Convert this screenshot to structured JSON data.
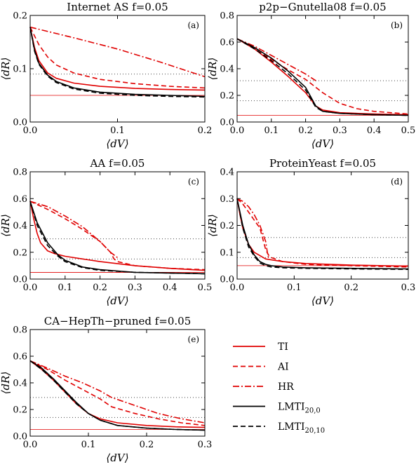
{
  "legend": [
    {
      "key": "TI",
      "label": "TI",
      "sub": "",
      "color": "#e00000",
      "dash": "solid"
    },
    {
      "key": "AI",
      "label": "AI",
      "sub": "",
      "color": "#e00000",
      "dash": "dashed"
    },
    {
      "key": "HR",
      "label": "HR",
      "sub": "",
      "color": "#e00000",
      "dash": "dashdot"
    },
    {
      "key": "LMTI_20_0",
      "label": "LMTI",
      "sub": "20,0",
      "color": "#000000",
      "dash": "solid"
    },
    {
      "key": "LMTI_20_10",
      "label": "LMTI",
      "sub": "20,10",
      "color": "#000000",
      "dash": "dashed"
    }
  ],
  "chart_data": [
    {
      "type": "line",
      "panel": "(a)",
      "title": "Internet AS  f=0.05",
      "xlabel": "⟨dV⟩",
      "ylabel": "⟨dR⟩",
      "xlim": [
        0,
        0.2
      ],
      "ylim": [
        0,
        0.2
      ],
      "xticks": [
        0,
        0.1,
        0.2
      ],
      "xticklabels": [
        "0.0",
        "0.1",
        "0.2"
      ],
      "yticks": [
        0,
        0.1,
        0.2
      ],
      "yticklabels": [
        "0.0",
        "0.1",
        "0.2"
      ],
      "hlines": [
        {
          "y": 0.05,
          "style": "red-thin"
        },
        {
          "y": 0.09,
          "style": "dotted"
        }
      ],
      "series": [
        {
          "name": "TI",
          "x": [
            0,
            0.005,
            0.01,
            0.02,
            0.03,
            0.05,
            0.08,
            0.12,
            0.16,
            0.2
          ],
          "y": [
            0.178,
            0.14,
            0.115,
            0.092,
            0.082,
            0.073,
            0.067,
            0.063,
            0.061,
            0.06
          ]
        },
        {
          "name": "AI",
          "x": [
            0,
            0.01,
            0.02,
            0.03,
            0.05,
            0.08,
            0.12,
            0.16,
            0.2
          ],
          "y": [
            0.178,
            0.145,
            0.122,
            0.107,
            0.092,
            0.08,
            0.072,
            0.067,
            0.064
          ]
        },
        {
          "name": "HR",
          "x": [
            0,
            0.05,
            0.1,
            0.15,
            0.2
          ],
          "y": [
            0.178,
            0.158,
            0.137,
            0.112,
            0.085
          ]
        },
        {
          "name": "LMTI_20_0",
          "x": [
            0,
            0.005,
            0.01,
            0.02,
            0.03,
            0.05,
            0.08,
            0.12,
            0.16,
            0.2
          ],
          "y": [
            0.178,
            0.135,
            0.11,
            0.088,
            0.076,
            0.064,
            0.056,
            0.052,
            0.05,
            0.048
          ]
        },
        {
          "name": "LMTI_20_10",
          "x": [
            0,
            0.005,
            0.01,
            0.02,
            0.03,
            0.05,
            0.08,
            0.12,
            0.16,
            0.2
          ],
          "y": [
            0.178,
            0.133,
            0.108,
            0.086,
            0.074,
            0.062,
            0.054,
            0.05,
            0.048,
            0.047
          ]
        }
      ]
    },
    {
      "type": "line",
      "panel": "(b)",
      "title": "p2p−Gnutella08  f=0.05",
      "xlabel": "⟨dV⟩",
      "ylabel": "⟨dR⟩",
      "xlim": [
        0,
        0.5
      ],
      "ylim": [
        0,
        0.8
      ],
      "xticks": [
        0,
        0.1,
        0.2,
        0.3,
        0.4,
        0.5
      ],
      "xticklabels": [
        "0.0",
        "0.1",
        "0.2",
        "0.3",
        "0.4",
        "0.5"
      ],
      "yticks": [
        0,
        0.2,
        0.4,
        0.6,
        0.8
      ],
      "yticklabels": [
        "0.0",
        "0.2",
        "0.4",
        "0.6",
        "0.8"
      ],
      "hlines": [
        {
          "y": 0.05,
          "style": "red-thin"
        },
        {
          "y": 0.16,
          "style": "dotted"
        },
        {
          "y": 0.31,
          "style": "dotted"
        }
      ],
      "series": [
        {
          "name": "TI",
          "x": [
            0,
            0.05,
            0.1,
            0.15,
            0.2,
            0.23,
            0.25,
            0.3,
            0.4,
            0.5
          ],
          "y": [
            0.625,
            0.55,
            0.45,
            0.34,
            0.22,
            0.12,
            0.09,
            0.07,
            0.06,
            0.055
          ]
        },
        {
          "name": "AI",
          "x": [
            0,
            0.05,
            0.1,
            0.15,
            0.2,
            0.25,
            0.3,
            0.35,
            0.4,
            0.5
          ],
          "y": [
            0.625,
            0.55,
            0.47,
            0.39,
            0.32,
            0.22,
            0.14,
            0.1,
            0.08,
            0.06
          ]
        },
        {
          "name": "HR",
          "x": [
            0,
            0.05,
            0.1,
            0.15,
            0.2,
            0.23
          ],
          "y": [
            0.625,
            0.57,
            0.5,
            0.43,
            0.36,
            0.31
          ]
        },
        {
          "name": "LMTI_20_0",
          "x": [
            0,
            0.05,
            0.1,
            0.15,
            0.2,
            0.23,
            0.25,
            0.3,
            0.4,
            0.5
          ],
          "y": [
            0.625,
            0.56,
            0.48,
            0.38,
            0.26,
            0.12,
            0.08,
            0.065,
            0.055,
            0.05
          ]
        },
        {
          "name": "LMTI_20_10",
          "x": [
            0,
            0.05,
            0.1,
            0.15,
            0.2,
            0.23,
            0.25,
            0.3,
            0.4,
            0.5
          ],
          "y": [
            0.625,
            0.55,
            0.46,
            0.36,
            0.24,
            0.11,
            0.08,
            0.065,
            0.055,
            0.05
          ]
        }
      ]
    },
    {
      "type": "line",
      "panel": "(c)",
      "title": "AA  f=0.05",
      "xlabel": "⟨dV⟩",
      "ylabel": "⟨dR⟩",
      "xlim": [
        0,
        0.5
      ],
      "ylim": [
        0,
        0.8
      ],
      "xticks": [
        0,
        0.1,
        0.2,
        0.3,
        0.4,
        0.5
      ],
      "xticklabels": [
        "0.0",
        "0.1",
        "0.2",
        "0.3",
        "0.4",
        "0.5"
      ],
      "yticks": [
        0,
        0.2,
        0.4,
        0.6,
        0.8
      ],
      "yticklabels": [
        "0.0",
        "0.2",
        "0.4",
        "0.6",
        "0.8"
      ],
      "hlines": [
        {
          "y": 0.05,
          "style": "red-thin"
        },
        {
          "y": 0.15,
          "style": "dotted"
        },
        {
          "y": 0.3,
          "style": "dotted"
        }
      ],
      "series": [
        {
          "name": "TI",
          "x": [
            0,
            0.01,
            0.02,
            0.03,
            0.05,
            0.07,
            0.1,
            0.15,
            0.2,
            0.3,
            0.4,
            0.5
          ],
          "y": [
            0.58,
            0.45,
            0.34,
            0.27,
            0.21,
            0.19,
            0.17,
            0.15,
            0.13,
            0.1,
            0.08,
            0.065
          ]
        },
        {
          "name": "AI",
          "x": [
            0,
            0.05,
            0.1,
            0.15,
            0.2,
            0.23,
            0.24,
            0.25,
            0.3,
            0.4,
            0.5
          ],
          "y": [
            0.58,
            0.52,
            0.45,
            0.37,
            0.28,
            0.2,
            0.15,
            0.13,
            0.1,
            0.08,
            0.07
          ]
        },
        {
          "name": "HR",
          "x": [
            0,
            0.05,
            0.1,
            0.15,
            0.2,
            0.23,
            0.25
          ],
          "y": [
            0.58,
            0.54,
            0.47,
            0.39,
            0.28,
            0.2,
            0.16
          ]
        },
        {
          "name": "LMTI_20_0",
          "x": [
            0,
            0.02,
            0.05,
            0.08,
            0.1,
            0.15,
            0.2,
            0.3,
            0.4,
            0.5
          ],
          "y": [
            0.58,
            0.42,
            0.27,
            0.18,
            0.14,
            0.09,
            0.07,
            0.05,
            0.045,
            0.04
          ]
        },
        {
          "name": "LMTI_20_10",
          "x": [
            0,
            0.02,
            0.05,
            0.08,
            0.1,
            0.15,
            0.2,
            0.3,
            0.4,
            0.5
          ],
          "y": [
            0.58,
            0.4,
            0.25,
            0.17,
            0.13,
            0.085,
            0.065,
            0.05,
            0.045,
            0.04
          ]
        }
      ]
    },
    {
      "type": "line",
      "panel": "(d)",
      "title": "ProteinYeast  f=0.05",
      "xlabel": "⟨dV⟩",
      "ylabel": "⟨dR⟩",
      "xlim": [
        0,
        0.3
      ],
      "ylim": [
        0,
        0.4
      ],
      "xticks": [
        0,
        0.1,
        0.2,
        0.3
      ],
      "xticklabels": [
        "0.0",
        "0.1",
        "0.2",
        "0.3"
      ],
      "yticks": [
        0,
        0.1,
        0.2,
        0.3,
        0.4
      ],
      "yticklabels": [
        "0.0",
        "0.1",
        "0.2",
        "0.3",
        "0.4"
      ],
      "hlines": [
        {
          "y": 0.05,
          "style": "red-thin"
        },
        {
          "y": 0.08,
          "style": "dotted"
        },
        {
          "y": 0.155,
          "style": "dotted"
        }
      ],
      "series": [
        {
          "name": "TI",
          "x": [
            0,
            0.005,
            0.01,
            0.02,
            0.03,
            0.05,
            0.08,
            0.12,
            0.2,
            0.3
          ],
          "y": [
            0.3,
            0.24,
            0.19,
            0.13,
            0.1,
            0.075,
            0.065,
            0.058,
            0.052,
            0.048
          ]
        },
        {
          "name": "AI",
          "x": [
            0,
            0.01,
            0.02,
            0.03,
            0.04,
            0.045,
            0.05,
            0.055,
            0.06,
            0.08,
            0.12,
            0.2,
            0.3
          ],
          "y": [
            0.3,
            0.28,
            0.25,
            0.22,
            0.19,
            0.15,
            0.11,
            0.09,
            0.08,
            0.065,
            0.055,
            0.05,
            0.045
          ]
        },
        {
          "name": "HR",
          "x": [
            0,
            0.01,
            0.02,
            0.03,
            0.04,
            0.05,
            0.053,
            0.055
          ],
          "y": [
            0.3,
            0.29,
            0.27,
            0.24,
            0.2,
            0.14,
            0.1,
            0.08
          ]
        },
        {
          "name": "LMTI_20_0",
          "x": [
            0,
            0.01,
            0.02,
            0.03,
            0.04,
            0.05,
            0.06,
            0.08,
            0.12,
            0.2,
            0.3
          ],
          "y": [
            0.3,
            0.2,
            0.13,
            0.09,
            0.065,
            0.055,
            0.05,
            0.045,
            0.042,
            0.04,
            0.038
          ]
        },
        {
          "name": "LMTI_20_10",
          "x": [
            0,
            0.01,
            0.02,
            0.03,
            0.04,
            0.05,
            0.06,
            0.08,
            0.12,
            0.2,
            0.3
          ],
          "y": [
            0.3,
            0.19,
            0.12,
            0.085,
            0.06,
            0.05,
            0.045,
            0.042,
            0.04,
            0.038,
            0.036
          ]
        }
      ]
    },
    {
      "type": "line",
      "panel": "(e)",
      "title": "CA−HepTh−pruned  f=0.05",
      "xlabel": "⟨dV⟩",
      "ylabel": "⟨dR⟩",
      "xlim": [
        0,
        0.3
      ],
      "ylim": [
        0,
        0.8
      ],
      "xticks": [
        0,
        0.1,
        0.2,
        0.3
      ],
      "xticklabels": [
        "0.0",
        "0.1",
        "0.2",
        "0.3"
      ],
      "yticks": [
        0,
        0.2,
        0.4,
        0.6,
        0.8
      ],
      "yticklabels": [
        "0.0",
        "0.2",
        "0.4",
        "0.6",
        "0.8"
      ],
      "hlines": [
        {
          "y": 0.05,
          "style": "red-thin"
        },
        {
          "y": 0.14,
          "style": "dotted"
        },
        {
          "y": 0.29,
          "style": "dotted"
        }
      ],
      "series": [
        {
          "name": "TI",
          "x": [
            0,
            0.02,
            0.04,
            0.06,
            0.08,
            0.1,
            0.12,
            0.15,
            0.2,
            0.25,
            0.3
          ],
          "y": [
            0.565,
            0.5,
            0.42,
            0.33,
            0.24,
            0.17,
            0.13,
            0.1,
            0.08,
            0.07,
            0.065
          ]
        },
        {
          "name": "AI",
          "x": [
            0,
            0.03,
            0.06,
            0.09,
            0.12,
            0.14,
            0.18,
            0.22,
            0.26,
            0.3
          ],
          "y": [
            0.565,
            0.5,
            0.42,
            0.35,
            0.28,
            0.22,
            0.17,
            0.13,
            0.1,
            0.08
          ]
        },
        {
          "name": "HR",
          "x": [
            0,
            0.03,
            0.06,
            0.09,
            0.12,
            0.14,
            0.18,
            0.22,
            0.26,
            0.3
          ],
          "y": [
            0.565,
            0.51,
            0.45,
            0.4,
            0.34,
            0.29,
            0.23,
            0.17,
            0.13,
            0.1
          ]
        },
        {
          "name": "LMTI_20_0",
          "x": [
            0,
            0.02,
            0.04,
            0.06,
            0.08,
            0.1,
            0.12,
            0.15,
            0.2,
            0.25,
            0.3
          ],
          "y": [
            0.565,
            0.51,
            0.43,
            0.34,
            0.25,
            0.17,
            0.12,
            0.08,
            0.06,
            0.05,
            0.045
          ]
        },
        {
          "name": "LMTI_20_10",
          "x": [
            0,
            0.02,
            0.04,
            0.06,
            0.08,
            0.1,
            0.12,
            0.15,
            0.2,
            0.25,
            0.3
          ],
          "y": [
            0.565,
            0.5,
            0.42,
            0.33,
            0.24,
            0.17,
            0.12,
            0.08,
            0.06,
            0.05,
            0.045
          ]
        }
      ]
    }
  ]
}
